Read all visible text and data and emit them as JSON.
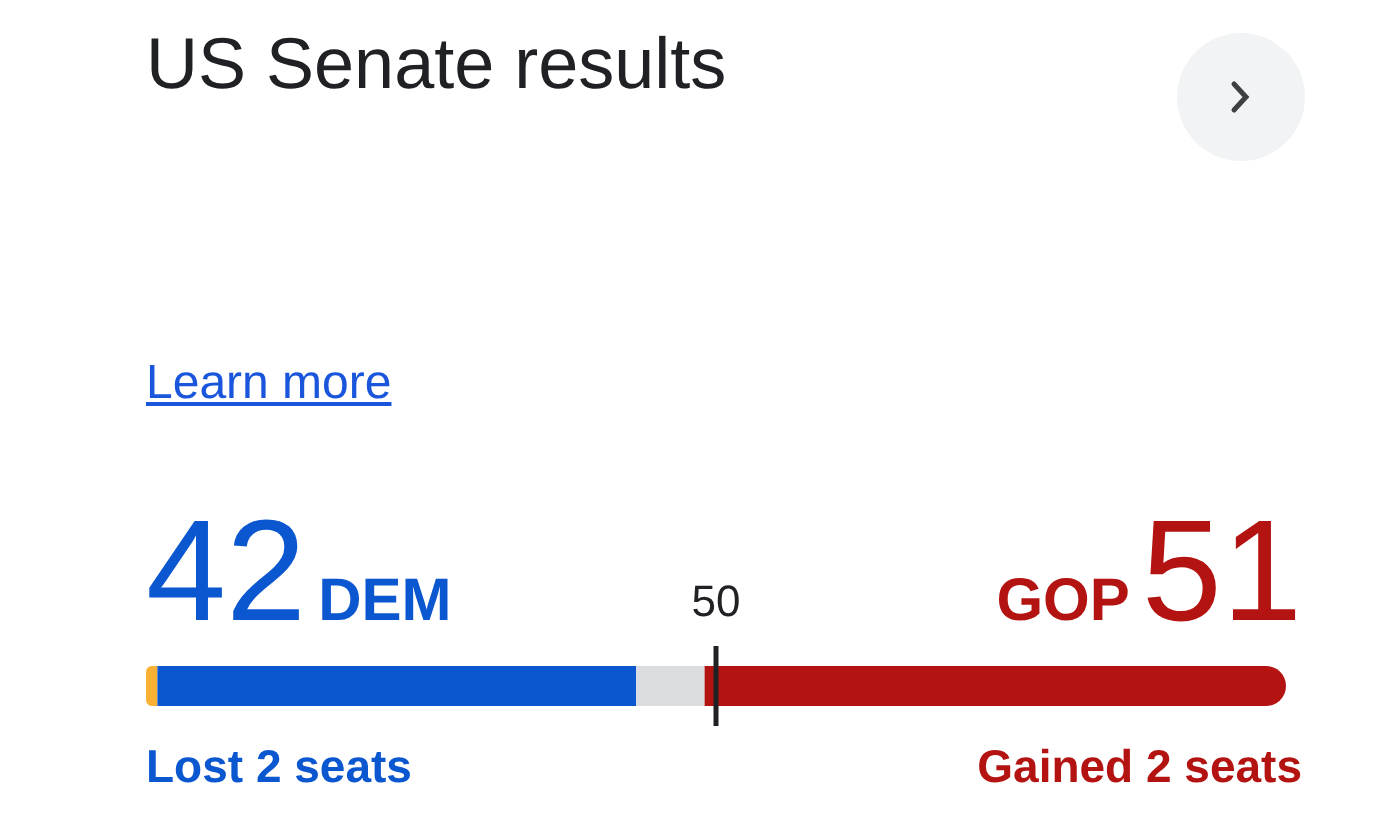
{
  "chart_data": {
    "type": "bar",
    "orientation": "horizontal",
    "stacked": true,
    "title": "US Senate results",
    "categories": [
      null
    ],
    "series": [
      {
        "color": "#f9b233",
        "values": [
          1
        ],
        "value_labels": [
          null
        ]
      },
      {
        "name": "DEM",
        "color": "#0b57d0",
        "values": [
          42
        ],
        "value_labels": [
          "42"
        ]
      },
      {
        "color": "#dadce0",
        "values": [
          6
        ],
        "value_labels": [
          null
        ]
      },
      {
        "name": "GOP",
        "color": "#b31412",
        "values": [
          51
        ],
        "value_labels": [
          "51"
        ]
      }
    ],
    "xlim": [
      0,
      100
    ],
    "ref_lines": [
      {
        "axis": "x",
        "value": 50,
        "label": "50",
        "color": "#202124"
      }
    ],
    "annotations": [
      "Learn more",
      "Lost 2 seats",
      "Gained 2 seats"
    ],
    "legend": false,
    "grid": false
  }
}
